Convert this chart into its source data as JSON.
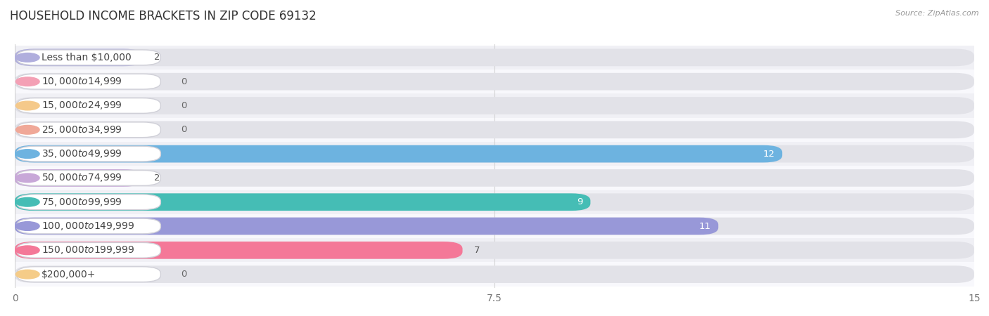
{
  "title": "HOUSEHOLD INCOME BRACKETS IN ZIP CODE 69132",
  "source": "Source: ZipAtlas.com",
  "categories": [
    "Less than $10,000",
    "$10,000 to $14,999",
    "$15,000 to $24,999",
    "$25,000 to $34,999",
    "$35,000 to $49,999",
    "$50,000 to $74,999",
    "$75,000 to $99,999",
    "$100,000 to $149,999",
    "$150,000 to $199,999",
    "$200,000+"
  ],
  "values": [
    2,
    0,
    0,
    0,
    12,
    2,
    9,
    11,
    7,
    0
  ],
  "bar_colors": [
    "#b0aedd",
    "#f4a0b5",
    "#f5c98a",
    "#f0a898",
    "#6db3e0",
    "#c8a8d8",
    "#45bdb5",
    "#9898d8",
    "#f47898",
    "#f5cc88"
  ],
  "xlim": [
    0,
    15
  ],
  "xticks": [
    0,
    7.5,
    15
  ],
  "row_bg_color": "#eeeeee",
  "row_alt_color": "#f8f8f8",
  "background_color": "#ffffff",
  "label_box_color": "#ffffff",
  "label_border_color": "#dddddd",
  "title_fontsize": 12,
  "label_fontsize": 10,
  "value_fontsize": 9.5,
  "source_fontsize": 8
}
